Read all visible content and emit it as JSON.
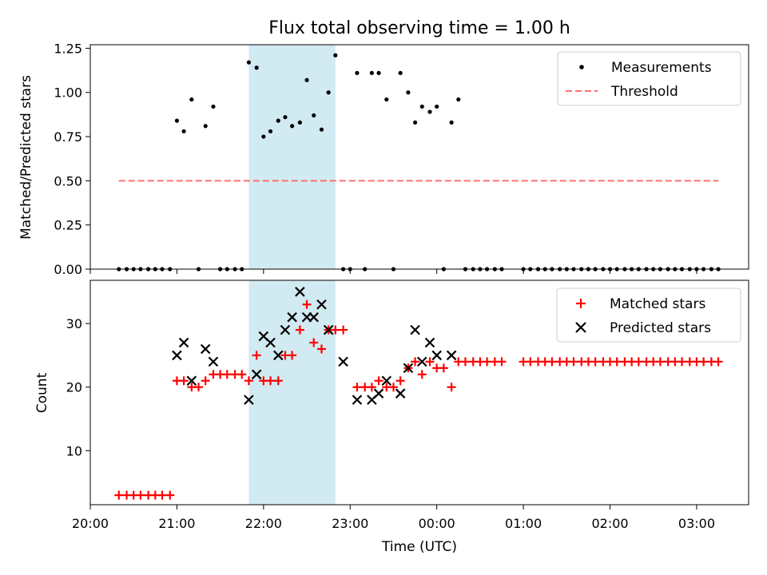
{
  "chart_data": [
    {
      "type": "scatter",
      "title": "Flux total observing time = 1.00 h",
      "xlabel": "",
      "ylabel": "Matched/Predicted stars",
      "ylim": [
        0,
        1.27
      ],
      "yticks": [
        "0.00",
        "0.25",
        "0.50",
        "0.75",
        "1.00",
        "1.25"
      ],
      "xlim_hours": [
        20.0,
        27.6
      ],
      "shaded_span_hours": [
        21.83,
        22.83
      ],
      "shaded_color": "#add8e6",
      "legend_position": "upper right",
      "legend": [
        "Measurements",
        "Threshold"
      ],
      "series": [
        {
          "name": "Measurements",
          "marker": "dot",
          "color": "#000000",
          "x_hours": [
            20.33,
            20.42,
            20.5,
            20.58,
            20.67,
            20.75,
            20.83,
            20.92,
            21.0,
            21.08,
            21.17,
            21.25,
            21.33,
            21.42,
            21.5,
            21.58,
            21.67,
            21.75,
            21.83,
            21.92,
            22.0,
            22.08,
            22.17,
            22.25,
            22.33,
            22.42,
            22.5,
            22.58,
            22.67,
            22.75,
            22.83,
            22.92,
            23.0,
            23.08,
            23.17,
            23.25,
            23.33,
            23.42,
            23.5,
            23.58,
            23.67,
            23.75,
            23.83,
            23.92,
            24.0,
            24.08,
            24.17,
            24.25,
            24.33,
            24.42,
            24.5,
            24.58,
            24.67,
            24.75,
            25.0,
            25.08,
            25.17,
            25.25,
            25.33,
            25.42,
            25.5,
            25.58,
            25.67,
            25.75,
            25.83,
            25.92,
            26.0,
            26.08,
            26.17,
            26.25,
            26.33,
            26.42,
            26.5,
            26.58,
            26.67,
            26.75,
            26.83,
            26.92,
            27.0,
            27.08,
            27.17,
            27.25
          ],
          "y": [
            0,
            0,
            0,
            0,
            0,
            0,
            0,
            0,
            0.84,
            0.78,
            0.96,
            0,
            0.81,
            0.92,
            0,
            0,
            0,
            0,
            1.17,
            1.14,
            0.75,
            0.78,
            0.84,
            0.86,
            0.81,
            0.83,
            1.07,
            0.87,
            0.79,
            1.0,
            1.21,
            0,
            0,
            1.11,
            0,
            1.11,
            1.11,
            0.96,
            0,
            1.11,
            1.0,
            0.83,
            0.92,
            0.89,
            0.92,
            0,
            0.83,
            0.96,
            0,
            0,
            0,
            0,
            0,
            0,
            0,
            0,
            0,
            0,
            0,
            0,
            0,
            0,
            0,
            0,
            0,
            0,
            0,
            0,
            0,
            0,
            0,
            0,
            0,
            0,
            0,
            0,
            0,
            0,
            0,
            0,
            0,
            0
          ]
        },
        {
          "name": "Threshold",
          "style": "dashed",
          "color": "#ff6f6f",
          "x_hours": [
            20.33,
            27.25
          ],
          "y": [
            0.5,
            0.5
          ]
        }
      ]
    },
    {
      "type": "scatter",
      "title": "",
      "xlabel": "Time (UTC)",
      "ylabel": "Count",
      "ylim": [
        1.5,
        36.8
      ],
      "yticks": [
        "10",
        "20",
        "30"
      ],
      "xlim_hours": [
        20.0,
        27.6
      ],
      "xticks": [
        {
          "hour": 20,
          "label": "20:00"
        },
        {
          "hour": 21,
          "label": "21:00"
        },
        {
          "hour": 22,
          "label": "22:00"
        },
        {
          "hour": 23,
          "label": "23:00"
        },
        {
          "hour": 24,
          "label": "00:00"
        },
        {
          "hour": 25,
          "label": "01:00"
        },
        {
          "hour": 26,
          "label": "02:00"
        },
        {
          "hour": 27,
          "label": "03:00"
        }
      ],
      "shaded_span_hours": [
        21.83,
        22.83
      ],
      "shaded_color": "#add8e6",
      "legend_position": "upper right",
      "legend": [
        "Matched stars",
        "Predicted stars"
      ],
      "series": [
        {
          "name": "Matched stars",
          "marker": "plus",
          "color": "#ff0000",
          "x_hours": [
            20.33,
            20.42,
            20.5,
            20.58,
            20.67,
            20.75,
            20.83,
            20.92,
            21.0,
            21.08,
            21.17,
            21.25,
            21.33,
            21.42,
            21.5,
            21.58,
            21.67,
            21.75,
            21.83,
            21.92,
            22.0,
            22.08,
            22.17,
            22.25,
            22.33,
            22.42,
            22.5,
            22.58,
            22.67,
            22.75,
            22.83,
            22.92,
            23.08,
            23.17,
            23.25,
            23.33,
            23.42,
            23.5,
            23.58,
            23.67,
            23.75,
            23.83,
            23.92,
            24.0,
            24.08,
            24.17,
            24.25,
            24.33,
            24.42,
            24.5,
            24.58,
            24.67,
            24.75,
            25.0,
            25.08,
            25.17,
            25.25,
            25.33,
            25.42,
            25.5,
            25.58,
            25.67,
            25.75,
            25.83,
            25.92,
            26.0,
            26.08,
            26.17,
            26.25,
            26.33,
            26.42,
            26.5,
            26.58,
            26.67,
            26.75,
            26.83,
            26.92,
            27.0,
            27.08,
            27.17,
            27.25
          ],
          "y": [
            3,
            3,
            3,
            3,
            3,
            3,
            3,
            3,
            21,
            21,
            20,
            20,
            21,
            22,
            22,
            22,
            22,
            22,
            21,
            25,
            21,
            21,
            21,
            25,
            25,
            29,
            33,
            27,
            26,
            29,
            29,
            29,
            20,
            20,
            20,
            21,
            20,
            20,
            21,
            23,
            24,
            22,
            24,
            23,
            23,
            20,
            24,
            24,
            24,
            24,
            24,
            24,
            24,
            24,
            24,
            24,
            24,
            24,
            24,
            24,
            24,
            24,
            24,
            24,
            24,
            24,
            24,
            24,
            24,
            24,
            24,
            24,
            24,
            24,
            24,
            24,
            24,
            24,
            24,
            24,
            24
          ]
        },
        {
          "name": "Predicted stars",
          "marker": "x",
          "color": "#000000",
          "x_hours": [
            21.0,
            21.08,
            21.17,
            21.33,
            21.42,
            21.83,
            21.92,
            22.0,
            22.08,
            22.17,
            22.25,
            22.33,
            22.42,
            22.5,
            22.58,
            22.67,
            22.75,
            22.92,
            23.08,
            23.25,
            23.33,
            23.42,
            23.58,
            23.67,
            23.75,
            23.83,
            23.92,
            24.0,
            24.17
          ],
          "y": [
            25,
            27,
            21,
            26,
            24,
            18,
            22,
            28,
            27,
            25,
            29,
            31,
            35,
            31,
            31,
            33,
            29,
            24,
            18,
            18,
            19,
            21,
            19,
            23,
            29,
            24,
            27,
            25,
            25
          ]
        }
      ]
    }
  ]
}
